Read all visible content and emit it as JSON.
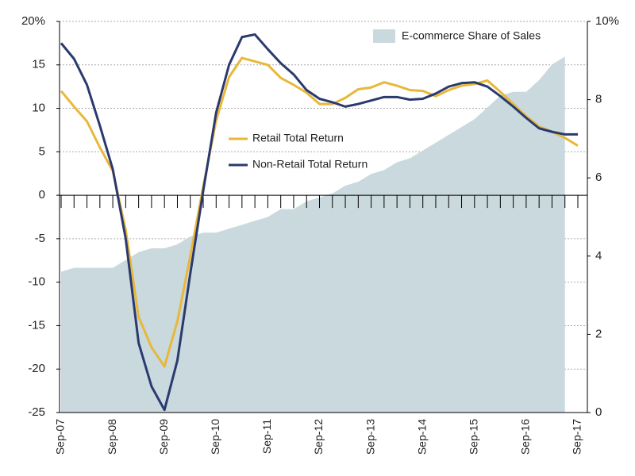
{
  "chart_data": {
    "type": "line",
    "categories": [
      "Sep-07",
      null,
      null,
      null,
      "Sep-08",
      null,
      null,
      null,
      "Sep-09",
      null,
      null,
      null,
      "Sep-10",
      null,
      null,
      null,
      "Sep-11",
      null,
      null,
      null,
      "Sep-12",
      null,
      null,
      null,
      "Sep-13",
      null,
      null,
      null,
      "Sep-14",
      null,
      null,
      null,
      "Sep-15",
      null,
      null,
      null,
      "Sep-16",
      null,
      null,
      null,
      "Sep-17"
    ],
    "series": [
      {
        "name": "E-commerce Share of Sales",
        "type": "area",
        "axis": "y2",
        "color": "#c9d9de",
        "values": [
          3.6,
          3.7,
          3.7,
          3.7,
          3.7,
          3.9,
          4.1,
          4.2,
          4.2,
          4.3,
          4.5,
          4.6,
          4.6,
          4.7,
          4.8,
          4.9,
          5.0,
          5.2,
          5.2,
          5.4,
          5.5,
          5.6,
          5.8,
          5.9,
          6.1,
          6.2,
          6.4,
          6.5,
          6.7,
          6.9,
          7.1,
          7.3,
          7.5,
          7.8,
          8.1,
          8.2,
          8.2,
          8.5,
          8.9,
          9.1,
          null
        ]
      },
      {
        "name": "Retail Total Return",
        "type": "line",
        "color": "#e8b83a",
        "values": [
          12,
          10.2,
          8.5,
          5.5,
          2.8,
          -4,
          -14,
          -17.5,
          -19.7,
          -14.5,
          -7,
          1,
          8.6,
          13.6,
          15.8,
          15.4,
          15,
          13.5,
          12.7,
          11.8,
          10.5,
          10.5,
          11.2,
          12.2,
          12.4,
          13,
          12.6,
          12.1,
          12,
          11.4,
          12.1,
          12.6,
          12.8,
          13.2,
          11.9,
          10.5,
          9.1,
          7.9,
          7.3,
          6.6,
          5.7
        ]
      },
      {
        "name": "Non-Retail Total Return",
        "type": "line",
        "color": "#2b3a6e",
        "values": [
          17.5,
          15.7,
          12.7,
          8,
          3,
          -5,
          -17,
          -22,
          -24.7,
          -19,
          -9,
          0.5,
          9.5,
          15,
          18.2,
          18.5,
          16.8,
          15.2,
          13.9,
          12.1,
          11.1,
          10.7,
          10.2,
          10.5,
          10.9,
          11.3,
          11.3,
          11,
          11.1,
          11.7,
          12.5,
          12.9,
          13,
          12.5,
          11.4,
          10.2,
          8.9,
          7.7,
          7.3,
          7,
          7
        ]
      }
    ],
    "ylim": [
      -25,
      20
    ],
    "yticks": [
      -25,
      -20,
      -15,
      -10,
      -5,
      0,
      5,
      10,
      {
        "value": 15,
        "label": "15"
      },
      {
        "value": 20,
        "label": "20%"
      }
    ],
    "y2lim": [
      0,
      10
    ],
    "y2ticks": [
      0,
      2,
      4,
      6,
      8,
      {
        "value": 10,
        "label": "10%"
      }
    ],
    "grid": true
  }
}
